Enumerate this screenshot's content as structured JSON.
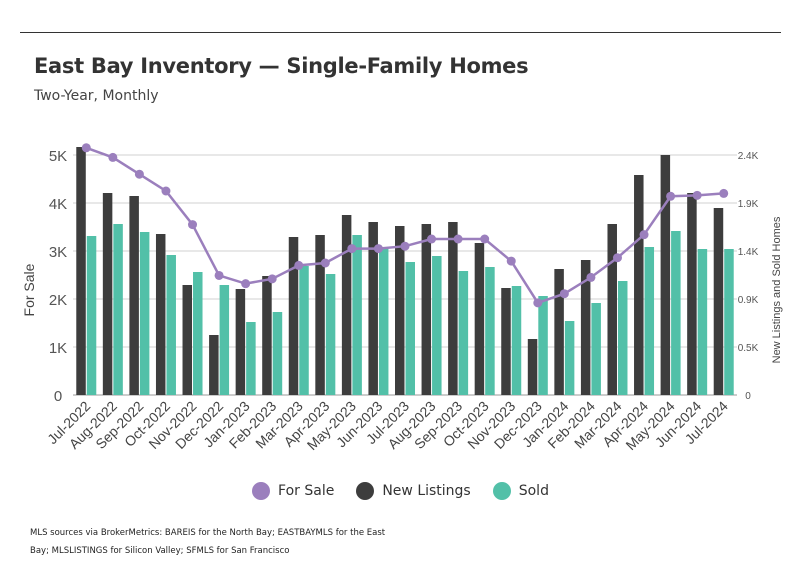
{
  "header": {
    "title": "East Bay Inventory — Single-Family Homes",
    "subtitle": "Two-Year, Monthly"
  },
  "footnote": {
    "line1": "MLS sources via BrokerMetrics: BAREIS for the North Bay; EASTBAYMLS for the East",
    "line2": "Bay; MLSLISTINGS for Silicon Valley; SFMLS for San Francisco"
  },
  "colors": {
    "for_sale": "#9b7fbd",
    "new_listings": "#3d3d3d",
    "sold": "#52c0a8",
    "grid": "#d0d0d0"
  },
  "chart_data": {
    "type": "bar",
    "categories": [
      "Jul-2022",
      "Aug-2022",
      "Sep-2022",
      "Oct-2022",
      "Nov-2022",
      "Dec-2022",
      "Jan-2023",
      "Feb-2023",
      "Mar-2023",
      "Apr-2023",
      "May-2023",
      "Jun-2023",
      "Jul-2023",
      "Aug-2023",
      "Sep-2023",
      "Oct-2023",
      "Nov-2023",
      "Dec-2023",
      "Jan-2024",
      "Feb-2024",
      "Mar-2024",
      "Apr-2024",
      "May-2024",
      "Jun-2024",
      "Jul-2024"
    ],
    "y_left": {
      "label": "For Sale",
      "range": [
        0,
        5000
      ],
      "ticks": [
        0,
        1000,
        2000,
        3000,
        4000,
        5000
      ],
      "tick_labels": [
        "0",
        "1K",
        "2K",
        "3K",
        "4K",
        "5K"
      ]
    },
    "y_right": {
      "label": "New Listings and Sold Homes",
      "range": [
        0,
        2400
      ],
      "ticks": [
        0,
        480,
        960,
        1440,
        1920,
        2400
      ],
      "tick_labels": [
        "0",
        "0.5K",
        "0.9K",
        "1.4K",
        "1.9K",
        "2.4K"
      ]
    },
    "grid": true,
    "legend_position": "bottom",
    "series": [
      {
        "name": "For Sale",
        "type": "line",
        "axis": "left",
        "values": [
          5150,
          4950,
          4600,
          4250,
          3550,
          2490,
          2320,
          2420,
          2700,
          2750,
          3050,
          3050,
          3100,
          3250,
          3250,
          3250,
          2790,
          1920,
          2110,
          2450,
          2860,
          3340,
          4140,
          4160,
          4200
        ]
      },
      {
        "name": "New Listings",
        "type": "bar",
        "axis": "right",
        "values": [
          2480,
          2020,
          1990,
          1610,
          1100,
          600,
          1060,
          1190,
          1580,
          1600,
          1800,
          1730,
          1690,
          1710,
          1730,
          1520,
          1070,
          560,
          1260,
          1350,
          1710,
          2200,
          2400,
          2020,
          1870
        ]
      },
      {
        "name": "Sold",
        "type": "bar",
        "axis": "right",
        "values": [
          1590,
          1710,
          1630,
          1400,
          1230,
          1100,
          730,
          830,
          1290,
          1210,
          1600,
          1480,
          1330,
          1390,
          1240,
          1280,
          1090,
          990,
          740,
          920,
          1140,
          1480,
          1640,
          1460,
          1460
        ]
      }
    ]
  }
}
